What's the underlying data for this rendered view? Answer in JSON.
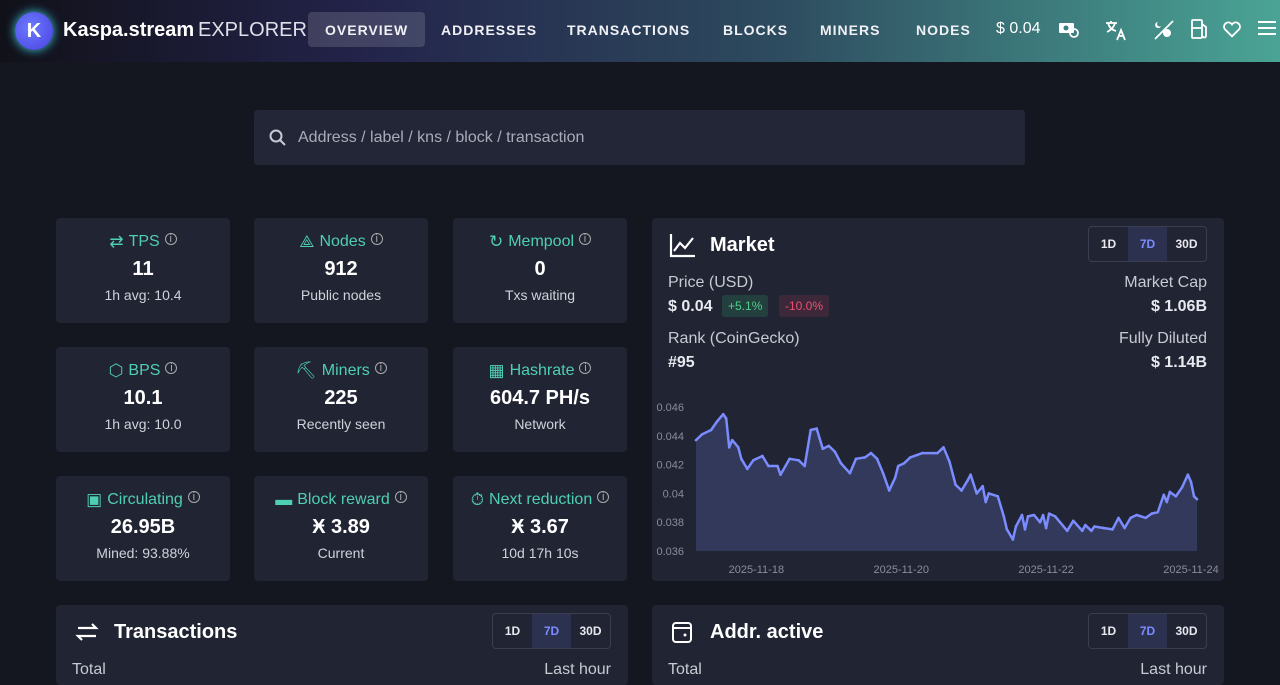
{
  "header": {
    "brand": "Kaspa.stream",
    "brand_suffix": "EXPLORER",
    "nav": [
      {
        "label": "OVERVIEW",
        "active": true
      },
      {
        "label": "ADDRESSES"
      },
      {
        "label": "TRANSACTIONS"
      },
      {
        "label": "BLOCKS"
      },
      {
        "label": "MINERS"
      },
      {
        "label": "NODES"
      }
    ],
    "price": "$ 0.04",
    "icons": [
      "currency-exchange-icon",
      "translate-icon",
      "theme-toggle-icon",
      "fuel-icon",
      "heart-icon",
      "menu-icon"
    ]
  },
  "search": {
    "placeholder": "Address / label / kns / block / transaction"
  },
  "stats": [
    {
      "label": "TPS",
      "icon": "arrows-swap-icon",
      "value": "11",
      "sub": "1h avg: 10.4"
    },
    {
      "label": "Nodes",
      "icon": "network-icon",
      "value": "912",
      "sub": "Public nodes"
    },
    {
      "label": "Mempool",
      "icon": "refresh-clock-icon",
      "value": "0",
      "sub": "Txs waiting"
    },
    {
      "label": "BPS",
      "icon": "cube-icon",
      "value": "10.1",
      "sub": "1h avg: 10.0"
    },
    {
      "label": "Miners",
      "icon": "pickaxe-icon",
      "value": "225",
      "sub": "Recently seen"
    },
    {
      "label": "Hashrate",
      "icon": "chip-icon",
      "value": "604.7 PH/s",
      "sub": "Network"
    },
    {
      "label": "Circulating",
      "icon": "counter-icon",
      "value": "26.95B",
      "sub": "Mined: 93.88%"
    },
    {
      "label": "Block reward",
      "icon": "cash-icon",
      "value": "Ӿ 3.89",
      "sub": "Current"
    },
    {
      "label": "Next reduction",
      "icon": "timer-icon",
      "value": "Ӿ 3.67",
      "sub": "10d 17h 10s"
    }
  ],
  "market": {
    "title": "Market",
    "ranges": [
      "1D",
      "7D",
      "30D"
    ],
    "selected_range": "7D",
    "price_label": "Price (USD)",
    "price": "$ 0.04",
    "change_pos": "+5.1%",
    "change_neg": "-10.0%",
    "rank_label": "Rank (CoinGecko)",
    "rank": "#95",
    "mcap_label": "Market Cap",
    "mcap": "$ 1.06B",
    "fdv_label": "Fully Diluted",
    "fdv": "$ 1.14B",
    "colors": {
      "line": "#7b8cff",
      "fill": "#33395a",
      "positive": "#4fcf8f",
      "negative": "#ef4f6f"
    }
  },
  "chart_data": {
    "type": "area",
    "ylim": [
      0.036,
      0.046
    ],
    "yticks": [
      "0.046",
      "0.044",
      "0.042",
      "0.04",
      "0.038",
      "0.036"
    ],
    "xticks": [
      "2025-11-18",
      "2025-11-20",
      "2025-11-22",
      "2025-11-24"
    ],
    "grid": false,
    "points": [
      [
        "2025-11-17T04:00",
        0.0437
      ],
      [
        "2025-11-17T06:00",
        0.0441
      ],
      [
        "2025-11-17T09:00",
        0.0444
      ],
      [
        "2025-11-17T11:00",
        0.045
      ],
      [
        "2025-11-17T13:00",
        0.0455
      ],
      [
        "2025-11-17T14:00",
        0.0452
      ],
      [
        "2025-11-17T15:00",
        0.0432
      ],
      [
        "2025-11-17T16:00",
        0.0437
      ],
      [
        "2025-11-17T18:00",
        0.0432
      ],
      [
        "2025-11-17T19:00",
        0.0424
      ],
      [
        "2025-11-17T21:00",
        0.0417
      ],
      [
        "2025-11-17T23:00",
        0.0423
      ],
      [
        "2025-11-18T02:00",
        0.0426
      ],
      [
        "2025-11-18T04:00",
        0.0419
      ],
      [
        "2025-11-18T07:00",
        0.0419
      ],
      [
        "2025-11-18T08:00",
        0.0413
      ],
      [
        "2025-11-18T11:00",
        0.0424
      ],
      [
        "2025-11-18T14:00",
        0.0423
      ],
      [
        "2025-11-18T16:00",
        0.0419
      ],
      [
        "2025-11-18T18:00",
        0.0444
      ],
      [
        "2025-11-18T20:00",
        0.0445
      ],
      [
        "2025-11-18T21:00",
        0.0438
      ],
      [
        "2025-11-18T22:00",
        0.0431
      ],
      [
        "2025-11-19T00:00",
        0.0433
      ],
      [
        "2025-11-19T02:00",
        0.0429
      ],
      [
        "2025-11-19T04:00",
        0.0421
      ],
      [
        "2025-11-19T07:00",
        0.0414
      ],
      [
        "2025-11-19T09:00",
        0.0424
      ],
      [
        "2025-11-19T12:00",
        0.0425
      ],
      [
        "2025-11-19T14:00",
        0.0428
      ],
      [
        "2025-11-19T16:00",
        0.0424
      ],
      [
        "2025-11-19T18:00",
        0.0414
      ],
      [
        "2025-11-19T20:00",
        0.0402
      ],
      [
        "2025-11-19T22:00",
        0.0411
      ],
      [
        "2025-11-19T23:00",
        0.0419
      ],
      [
        "2025-11-20T01:00",
        0.0421
      ],
      [
        "2025-11-20T03:00",
        0.0425
      ],
      [
        "2025-11-20T07:00",
        0.0428
      ],
      [
        "2025-11-20T11:00",
        0.0428
      ],
      [
        "2025-11-20T12:00",
        0.0428
      ],
      [
        "2025-11-20T14:00",
        0.0432
      ],
      [
        "2025-11-20T16:00",
        0.0422
      ],
      [
        "2025-11-20T18:00",
        0.0406
      ],
      [
        "2025-11-20T20:00",
        0.0402
      ],
      [
        "2025-11-20T22:00",
        0.0409
      ],
      [
        "2025-11-20T23:00",
        0.0413
      ],
      [
        "2025-11-21T01:00",
        0.04
      ],
      [
        "2025-11-21T03:00",
        0.0405
      ],
      [
        "2025-11-21T04:00",
        0.0394
      ],
      [
        "2025-11-21T05:00",
        0.04
      ],
      [
        "2025-11-21T08:00",
        0.0398
      ],
      [
        "2025-11-21T10:00",
        0.0384
      ],
      [
        "2025-11-21T11:00",
        0.0375
      ],
      [
        "2025-11-21T13:00",
        0.0368
      ],
      [
        "2025-11-21T14:00",
        0.0377
      ],
      [
        "2025-11-21T16:00",
        0.0385
      ],
      [
        "2025-11-21T17:00",
        0.0375
      ],
      [
        "2025-11-21T18:00",
        0.0384
      ],
      [
        "2025-11-21T20:00",
        0.0385
      ],
      [
        "2025-11-21T22:00",
        0.038
      ],
      [
        "2025-11-21T23:00",
        0.0385
      ],
      [
        "2025-11-22T00:00",
        0.0376
      ],
      [
        "2025-11-22T01:00",
        0.0386
      ],
      [
        "2025-11-22T03:00",
        0.0384
      ],
      [
        "2025-11-22T07:00",
        0.0374
      ],
      [
        "2025-11-22T09:00",
        0.0381
      ],
      [
        "2025-11-22T12:00",
        0.0374
      ],
      [
        "2025-11-22T13:00",
        0.0378
      ],
      [
        "2025-11-22T15:00",
        0.0374
      ],
      [
        "2025-11-22T16:00",
        0.0377
      ],
      [
        "2025-11-22T19:00",
        0.0376
      ],
      [
        "2025-11-22T22:00",
        0.0375
      ],
      [
        "2025-11-23T00:00",
        0.0383
      ],
      [
        "2025-11-23T02:00",
        0.0376
      ],
      [
        "2025-11-23T04:00",
        0.0383
      ],
      [
        "2025-11-23T06:00",
        0.0385
      ],
      [
        "2025-11-23T09:00",
        0.0383
      ],
      [
        "2025-11-23T11:00",
        0.0386
      ],
      [
        "2025-11-23T13:00",
        0.0387
      ],
      [
        "2025-11-23T15:00",
        0.0399
      ],
      [
        "2025-11-23T16:00",
        0.0394
      ],
      [
        "2025-11-23T17:00",
        0.0401
      ],
      [
        "2025-11-23T19:00",
        0.0398
      ],
      [
        "2025-11-23T21:00",
        0.0404
      ],
      [
        "2025-11-23T23:00",
        0.0413
      ],
      [
        "2025-11-24T00:00",
        0.0408
      ],
      [
        "2025-11-24T01:00",
        0.0398
      ],
      [
        "2025-11-24T02:00",
        0.0396
      ]
    ]
  },
  "transactions_card": {
    "title": "Transactions",
    "ranges": [
      "1D",
      "7D",
      "30D"
    ],
    "selected_range": "7D",
    "left_label": "Total",
    "right_label": "Last hour"
  },
  "addr_card": {
    "title": "Addr. active",
    "ranges": [
      "1D",
      "7D",
      "30D"
    ],
    "selected_range": "7D",
    "left_label": "Total",
    "right_label": "Last hour"
  }
}
